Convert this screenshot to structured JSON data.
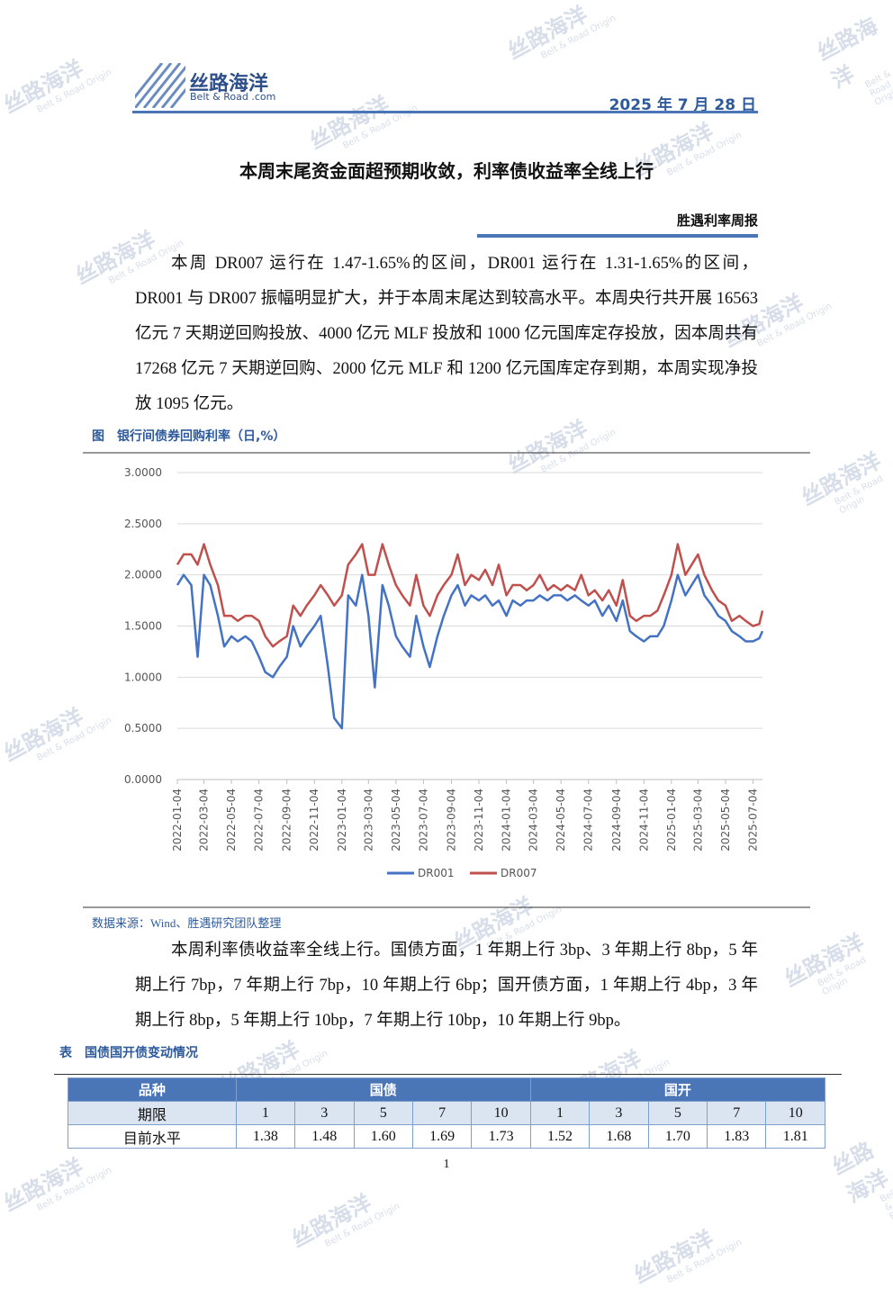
{
  "header": {
    "logo_text": "丝路海洋",
    "logo_sub": "Belt & Road .com",
    "date": "2025 年 7 月 28 日"
  },
  "watermark": {
    "text": "丝路海洋",
    "sub": "Belt & Road Origin"
  },
  "title": "本周末尾资金面超预期收敛，利率债收益率全线上行",
  "column": "胜遇利率周报",
  "paragraph_1": "本周 DR007 运行在 1.47-1.65%的区间，DR001 运行在 1.31-1.65%的区间，DR001 与 DR007 振幅明显扩大，并于本周末尾达到较高水平。本周央行共开展 16563 亿元 7 天期逆回购投放、4000 亿元 MLF 投放和 1000 亿元国库定存投放，因本周共有 17268 亿元 7 天期逆回购、2000 亿元 MLF 和 1200 亿元国库定存到期，本周实现净投放 1095 亿元。",
  "figure_caption": "图　银行间债券回购利率（日,%）",
  "chart_data": {
    "type": "line",
    "x": [
      "2022-01-04",
      "2022-01-18",
      "2022-02-04",
      "2022-02-18",
      "2022-03-04",
      "2022-03-18",
      "2022-04-04",
      "2022-04-18",
      "2022-05-04",
      "2022-05-18",
      "2022-06-04",
      "2022-06-18",
      "2022-07-04",
      "2022-07-18",
      "2022-08-04",
      "2022-08-18",
      "2022-09-04",
      "2022-09-18",
      "2022-10-04",
      "2022-10-18",
      "2022-11-04",
      "2022-11-18",
      "2022-12-04",
      "2022-12-18",
      "2023-01-04",
      "2023-01-18",
      "2023-02-04",
      "2023-02-18",
      "2023-03-04",
      "2023-03-18",
      "2023-04-04",
      "2023-04-18",
      "2023-05-04",
      "2023-05-18",
      "2023-06-04",
      "2023-06-18",
      "2023-07-04",
      "2023-07-18",
      "2023-08-04",
      "2023-08-18",
      "2023-09-04",
      "2023-09-18",
      "2023-10-04",
      "2023-10-18",
      "2023-11-04",
      "2023-11-18",
      "2023-12-04",
      "2023-12-18",
      "2024-01-04",
      "2024-01-18",
      "2024-02-04",
      "2024-02-18",
      "2024-03-04",
      "2024-03-18",
      "2024-04-04",
      "2024-04-18",
      "2024-05-04",
      "2024-05-18",
      "2024-06-04",
      "2024-06-18",
      "2024-07-04",
      "2024-07-18",
      "2024-08-04",
      "2024-08-18",
      "2024-09-04",
      "2024-09-18",
      "2024-10-04",
      "2024-10-18",
      "2024-11-04",
      "2024-11-18",
      "2024-12-04",
      "2024-12-18",
      "2025-01-04",
      "2025-01-18",
      "2025-02-04",
      "2025-02-18",
      "2025-03-04",
      "2025-03-18",
      "2025-04-04",
      "2025-04-18",
      "2025-05-04",
      "2025-05-18",
      "2025-06-04",
      "2025-06-18",
      "2025-07-04",
      "2025-07-18",
      "2025-07-25"
    ],
    "series": [
      {
        "name": "DR001",
        "color": "#4472c4",
        "values": [
          1.9,
          2.0,
          1.9,
          1.2,
          2.0,
          1.9,
          1.6,
          1.3,
          1.4,
          1.35,
          1.4,
          1.35,
          1.2,
          1.05,
          1.0,
          1.1,
          1.2,
          1.5,
          1.3,
          1.4,
          1.5,
          1.6,
          1.1,
          0.6,
          0.5,
          1.8,
          1.7,
          2.0,
          1.6,
          0.9,
          1.9,
          1.7,
          1.4,
          1.3,
          1.2,
          1.6,
          1.3,
          1.1,
          1.4,
          1.6,
          1.8,
          1.9,
          1.7,
          1.8,
          1.75,
          1.8,
          1.7,
          1.75,
          1.6,
          1.75,
          1.7,
          1.75,
          1.75,
          1.8,
          1.75,
          1.8,
          1.8,
          1.75,
          1.8,
          1.75,
          1.7,
          1.75,
          1.6,
          1.7,
          1.55,
          1.75,
          1.45,
          1.4,
          1.35,
          1.4,
          1.4,
          1.5,
          1.75,
          2.0,
          1.8,
          1.9,
          2.0,
          1.8,
          1.7,
          1.6,
          1.55,
          1.45,
          1.4,
          1.35,
          1.35,
          1.38,
          1.45
        ]
      },
      {
        "name": "DR007",
        "color": "#c0504d",
        "values": [
          2.1,
          2.2,
          2.2,
          2.1,
          2.3,
          2.1,
          1.9,
          1.6,
          1.6,
          1.55,
          1.6,
          1.6,
          1.55,
          1.4,
          1.3,
          1.35,
          1.4,
          1.7,
          1.6,
          1.7,
          1.8,
          1.9,
          1.8,
          1.7,
          1.8,
          2.1,
          2.2,
          2.3,
          2.0,
          2.0,
          2.3,
          2.1,
          1.9,
          1.8,
          1.7,
          2.0,
          1.7,
          1.6,
          1.8,
          1.9,
          2.0,
          2.2,
          1.9,
          2.0,
          1.95,
          2.05,
          1.9,
          2.1,
          1.8,
          1.9,
          1.9,
          1.85,
          1.9,
          2.0,
          1.85,
          1.9,
          1.85,
          1.9,
          1.85,
          2.0,
          1.8,
          1.85,
          1.75,
          1.85,
          1.7,
          1.95,
          1.6,
          1.55,
          1.6,
          1.6,
          1.65,
          1.8,
          2.0,
          2.3,
          2.0,
          2.1,
          2.2,
          2.0,
          1.85,
          1.75,
          1.7,
          1.55,
          1.6,
          1.55,
          1.5,
          1.52,
          1.65
        ]
      }
    ],
    "xlim": [
      "2022-01-04",
      "2025-07-25"
    ],
    "xticks": [
      "2022-01-04",
      "2022-03-04",
      "2022-05-04",
      "2022-07-04",
      "2022-09-04",
      "2022-11-04",
      "2023-01-04",
      "2023-03-04",
      "2023-05-04",
      "2023-07-04",
      "2023-09-04",
      "2023-11-04",
      "2024-01-04",
      "2024-03-04",
      "2024-05-04",
      "2024-07-04",
      "2024-09-04",
      "2024-11-04",
      "2025-01-04",
      "2025-03-04",
      "2025-05-04",
      "2025-07-04"
    ],
    "ylim": [
      0,
      3
    ],
    "yticks": [
      {
        "value": 0,
        "label": "0.0000"
      },
      {
        "value": 0.5,
        "label": "0.5000"
      },
      {
        "value": 1,
        "label": "1.0000"
      },
      {
        "value": 1.5,
        "label": "1.5000"
      },
      {
        "value": 2,
        "label": "2.0000"
      },
      {
        "value": 2.5,
        "label": "2.5000"
      },
      {
        "value": 3,
        "label": "3.0000"
      }
    ],
    "grid": true,
    "legend": "bottom"
  },
  "source": "数据来源：Wind、胜遇研究团队整理",
  "paragraph_2": "本周利率债收益率全线上行。国债方面，1 年期上行 3bp、3 年期上行 8bp，5 年期上行 7bp，7 年期上行 7bp，10 年期上行 6bp；国开债方面，1 年期上行 4bp，3 年期上行 8bp，5 年期上行 10bp，7 年期上行 10bp，10 年期上行 9bp。",
  "table_caption": "表　国债国开债变动情况",
  "table": {
    "header": [
      "品种",
      "国债",
      "国开"
    ],
    "rows": [
      [
        "期限",
        "1",
        "3",
        "5",
        "7",
        "10",
        "1",
        "3",
        "5",
        "7",
        "10"
      ],
      [
        "目前水平",
        "1.38",
        "1.48",
        "1.60",
        "1.69",
        "1.73",
        "1.52",
        "1.68",
        "1.70",
        "1.83",
        "1.81"
      ]
    ]
  },
  "page_number": "1"
}
